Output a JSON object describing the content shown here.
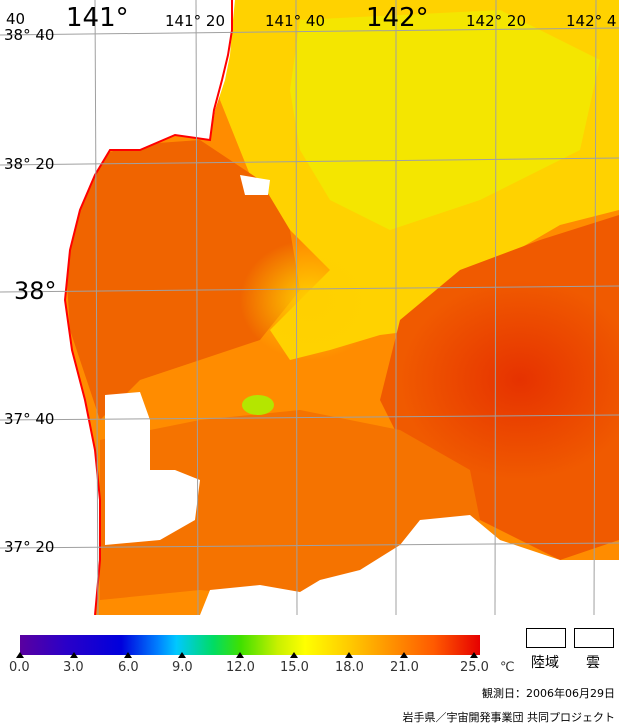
{
  "map": {
    "lon_labels": [
      {
        "text": "141°",
        "size": "big"
      },
      {
        "text": "141° 20",
        "size": "small"
      },
      {
        "text": "141° 40",
        "size": "small"
      },
      {
        "text": "142°",
        "size": "big"
      },
      {
        "text": "142° 20",
        "size": "small"
      },
      {
        "text": "142° 4",
        "size": "small"
      }
    ],
    "corner_fragment": "40",
    "lat_labels": [
      {
        "text": "38° 40",
        "size": "small"
      },
      {
        "text": "38° 20",
        "size": "small"
      },
      {
        "text": "38°",
        "size": "big"
      },
      {
        "text": "37° 40",
        "size": "small"
      },
      {
        "text": "37° 20",
        "size": "small"
      }
    ],
    "colors": {
      "land": "#ffffff",
      "coast": "#ff0000",
      "grid": "#a0a0a0"
    }
  },
  "scale": {
    "ticks": [
      "0.0",
      "3.0",
      "6.0",
      "9.0",
      "12.0",
      "15.0",
      "18.0",
      "21.0",
      "25.0"
    ],
    "unit": "℃"
  },
  "legend": {
    "land": "陸域",
    "cloud": "雲"
  },
  "footer": {
    "date": "観測日：2006年06月29日",
    "credit": "岩手県／宇宙開発事業団  共同プロジェクト"
  }
}
